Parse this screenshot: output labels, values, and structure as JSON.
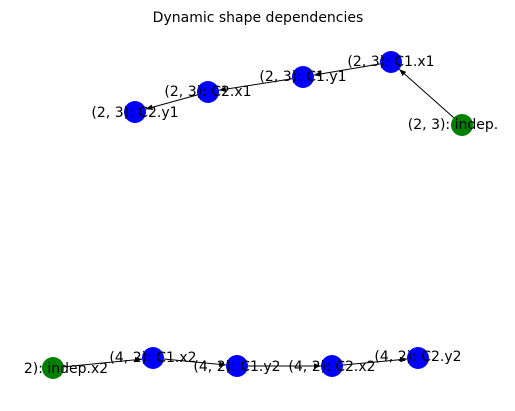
{
  "title": "Dynamic shape dependencies",
  "nodes": [
    {
      "label": "(2, 3): C2.y1",
      "color": "#0000ff"
    },
    {
      "label": "(2, 3): C2.x1",
      "color": "#0000ff"
    },
    {
      "label": "(2, 3): C1.y1",
      "color": "#0000ff"
    },
    {
      "label": "(2, 3): C1.x1",
      "color": "#0000ff"
    },
    {
      "label": "(2, 3): indep.",
      "color": "#008000"
    },
    {
      "label": "2): indep.x2",
      "color": "#008000"
    },
    {
      "label": "(4, 2): C1.x2",
      "color": "#0000ff"
    },
    {
      "label": "(4, 2): C1.y2",
      "color": "#0000ff"
    },
    {
      "label": "(4, 2): C2.x2",
      "color": "#0000ff"
    },
    {
      "label": "(4, 2): C2.y2",
      "color": "#0000ff"
    }
  ]
}
